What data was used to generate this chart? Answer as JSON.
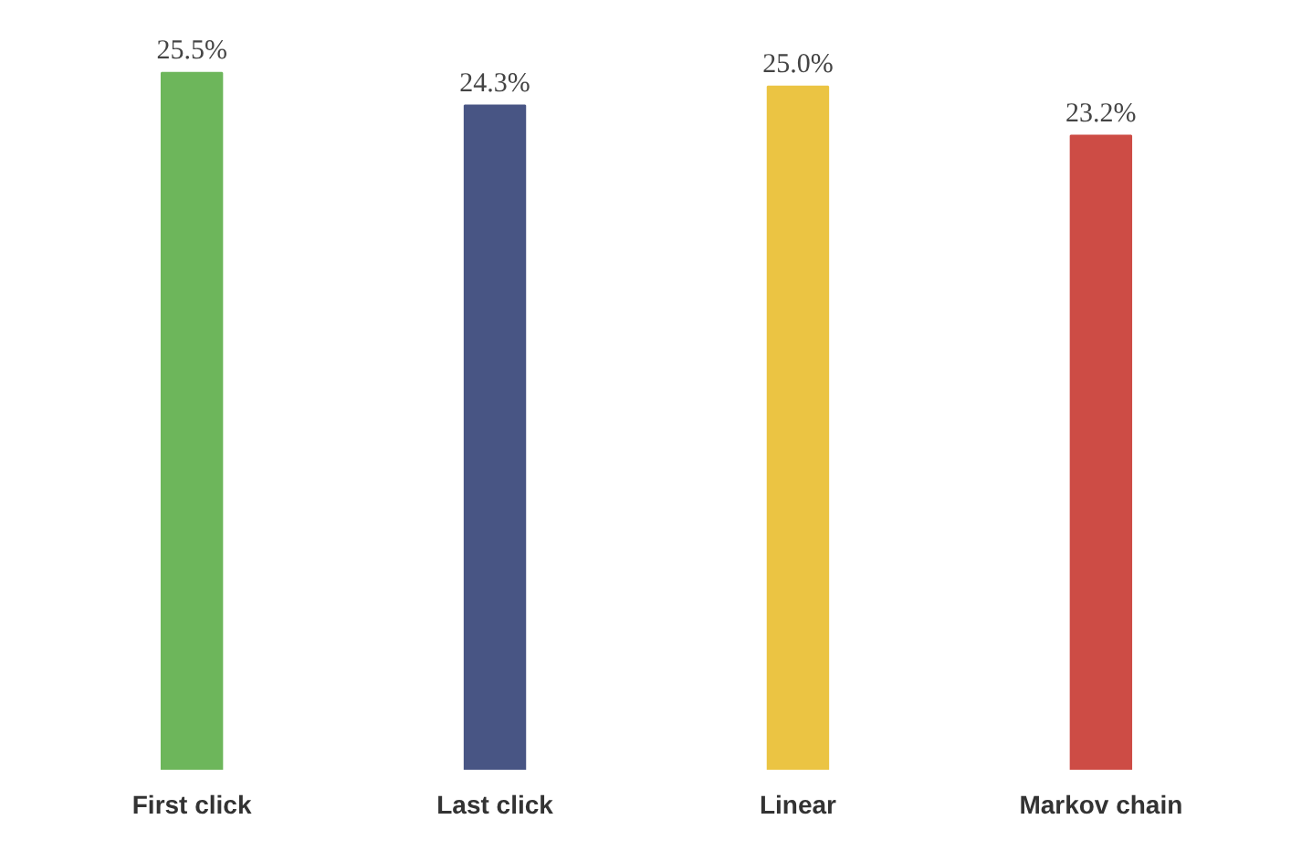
{
  "chart_data": {
    "type": "bar",
    "categories": [
      "First click",
      "Last click",
      "Linear",
      "Markov chain"
    ],
    "values": [
      25.5,
      24.3,
      25.0,
      23.2
    ],
    "colors": [
      "#6db65b",
      "#485584",
      "#ebc443",
      "#cd4c45"
    ],
    "value_labels": [
      "25.5%",
      "24.3%",
      "25.0%",
      "23.2%"
    ],
    "grid": false
  }
}
